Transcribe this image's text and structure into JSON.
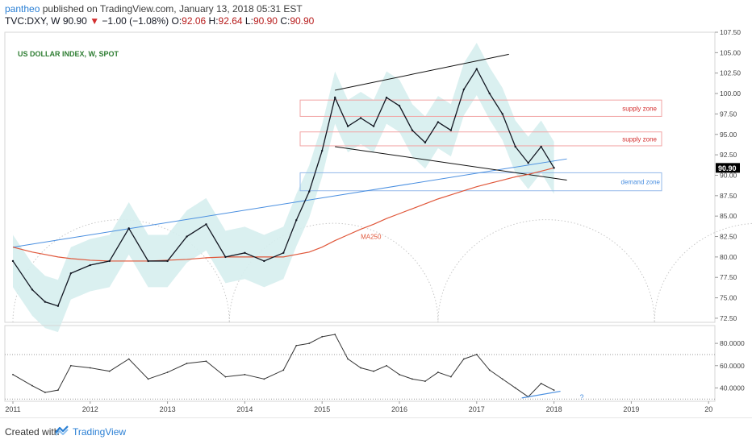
{
  "header": {
    "author": "pantheo",
    "published": "published on TradingView.com, January 13, 2018 05:31 EST",
    "symbol": "TVC:DXY, W",
    "last": "90.90",
    "change": "−1.00 (−1.08%)",
    "o_label": "O:",
    "o_value": "92.06",
    "h_label": "H:",
    "h_value": "92.64",
    "l_label": "L:",
    "l_value": "90.90",
    "c_label": "C:",
    "c_value": "90.90"
  },
  "footer": {
    "created_with": "Created with",
    "brand": "TradingView"
  },
  "colors": {
    "price": "#131722",
    "ma": "#e0573a",
    "band": "#d6eeee",
    "trend": "#4a8fe0",
    "supply": "#f2a3a3",
    "demand": "#93b8e8",
    "rsi": "#333333",
    "red_label": "#d32f2f",
    "blue_label": "#4a8fe0"
  },
  "chart_data": [
    {
      "type": "line",
      "title": "US DOLLAR INDEX, W, SPOT",
      "x": [
        "2011-01",
        "2011-04",
        "2011-06",
        "2011-08",
        "2011-10",
        "2012-01",
        "2012-04",
        "2012-07",
        "2012-10",
        "2013-01",
        "2013-04",
        "2013-07",
        "2013-10",
        "2014-01",
        "2014-04",
        "2014-07",
        "2014-09",
        "2014-11",
        "2015-01",
        "2015-03",
        "2015-05",
        "2015-07",
        "2015-09",
        "2015-11",
        "2016-01",
        "2016-03",
        "2016-05",
        "2016-07",
        "2016-09",
        "2016-11",
        "2017-01",
        "2017-03",
        "2017-05",
        "2017-07",
        "2017-09",
        "2017-11",
        "2018-01"
      ],
      "series": [
        {
          "name": "DXY",
          "values": [
            79.5,
            76.0,
            74.5,
            74.0,
            78.0,
            79.0,
            79.5,
            83.5,
            79.5,
            79.5,
            82.5,
            84.0,
            80.0,
            80.5,
            79.5,
            80.5,
            84.5,
            88.0,
            93.0,
            99.5,
            96.0,
            97.0,
            96.0,
            99.5,
            98.5,
            95.5,
            94.0,
            96.5,
            95.5,
            100.5,
            103.0,
            100.0,
            97.5,
            93.5,
            91.5,
            93.5,
            90.9
          ]
        },
        {
          "name": "MA250",
          "values": [
            81.2,
            80.6,
            80.3,
            80.0,
            79.8,
            79.6,
            79.5,
            79.5,
            79.5,
            79.6,
            79.7,
            79.9,
            80.0,
            80.0,
            80.0,
            80.0,
            80.3,
            80.6,
            81.2,
            82.0,
            82.7,
            83.4,
            84.0,
            84.7,
            85.3,
            85.9,
            86.5,
            87.1,
            87.6,
            88.1,
            88.6,
            89.0,
            89.4,
            89.8,
            90.1,
            90.5,
            90.9
          ]
        }
      ],
      "y_ticks": [
        "107.50",
        "105.00",
        "102.50",
        "100.00",
        "97.50",
        "95.00",
        "92.50",
        "90.00",
        "87.50",
        "85.00",
        "82.50",
        "80.00",
        "77.50",
        "75.00",
        "72.50"
      ],
      "ylim": [
        72,
        107.5
      ],
      "last_price_label": "90.90",
      "ma_label": "MA250",
      "annotations": [
        "supply zone",
        "supply zone",
        "demand zone"
      ],
      "supply_zones": [
        [
          97.2,
          99.2
        ],
        [
          93.6,
          95.3
        ]
      ],
      "demand_zone": [
        88.1,
        90.3
      ],
      "channel_upper": [
        [
          "2015-03",
          100.4
        ],
        [
          "2017-06",
          104.8
        ]
      ],
      "channel_lower": [
        [
          "2015-03",
          93.5
        ],
        [
          "2018-03",
          89.4
        ]
      ],
      "trendline": [
        [
          "2011-01",
          81.2
        ],
        [
          "2018-03",
          92.0
        ]
      ]
    },
    {
      "type": "line",
      "x": [
        "2011-01",
        "2011-04",
        "2011-06",
        "2011-08",
        "2011-10",
        "2012-01",
        "2012-04",
        "2012-07",
        "2012-10",
        "2013-01",
        "2013-04",
        "2013-07",
        "2013-10",
        "2014-01",
        "2014-04",
        "2014-07",
        "2014-09",
        "2014-11",
        "2015-01",
        "2015-03",
        "2015-05",
        "2015-07",
        "2015-09",
        "2015-11",
        "2016-01",
        "2016-03",
        "2016-05",
        "2016-07",
        "2016-09",
        "2016-11",
        "2017-01",
        "2017-03",
        "2017-05",
        "2017-07",
        "2017-09",
        "2017-11",
        "2018-01"
      ],
      "series": [
        {
          "name": "RSI",
          "values": [
            52,
            42,
            36,
            38,
            60,
            58,
            55,
            66,
            48,
            54,
            62,
            64,
            50,
            52,
            48,
            56,
            78,
            80,
            86,
            88,
            66,
            58,
            55,
            60,
            52,
            48,
            46,
            54,
            50,
            66,
            70,
            56,
            48,
            40,
            32,
            44,
            38
          ]
        }
      ],
      "y_ticks": [
        "80.0000",
        "60.0000",
        "40.0000"
      ],
      "ylim": [
        28,
        96
      ],
      "question_mark": "?",
      "divergence_line": [
        [
          "2017-08",
          31
        ],
        [
          "2018-02",
          37
        ]
      ]
    }
  ],
  "x_ticks": [
    "2011",
    "2012",
    "2013",
    "2014",
    "2015",
    "2016",
    "2017",
    "2018",
    "2019",
    "20"
  ]
}
